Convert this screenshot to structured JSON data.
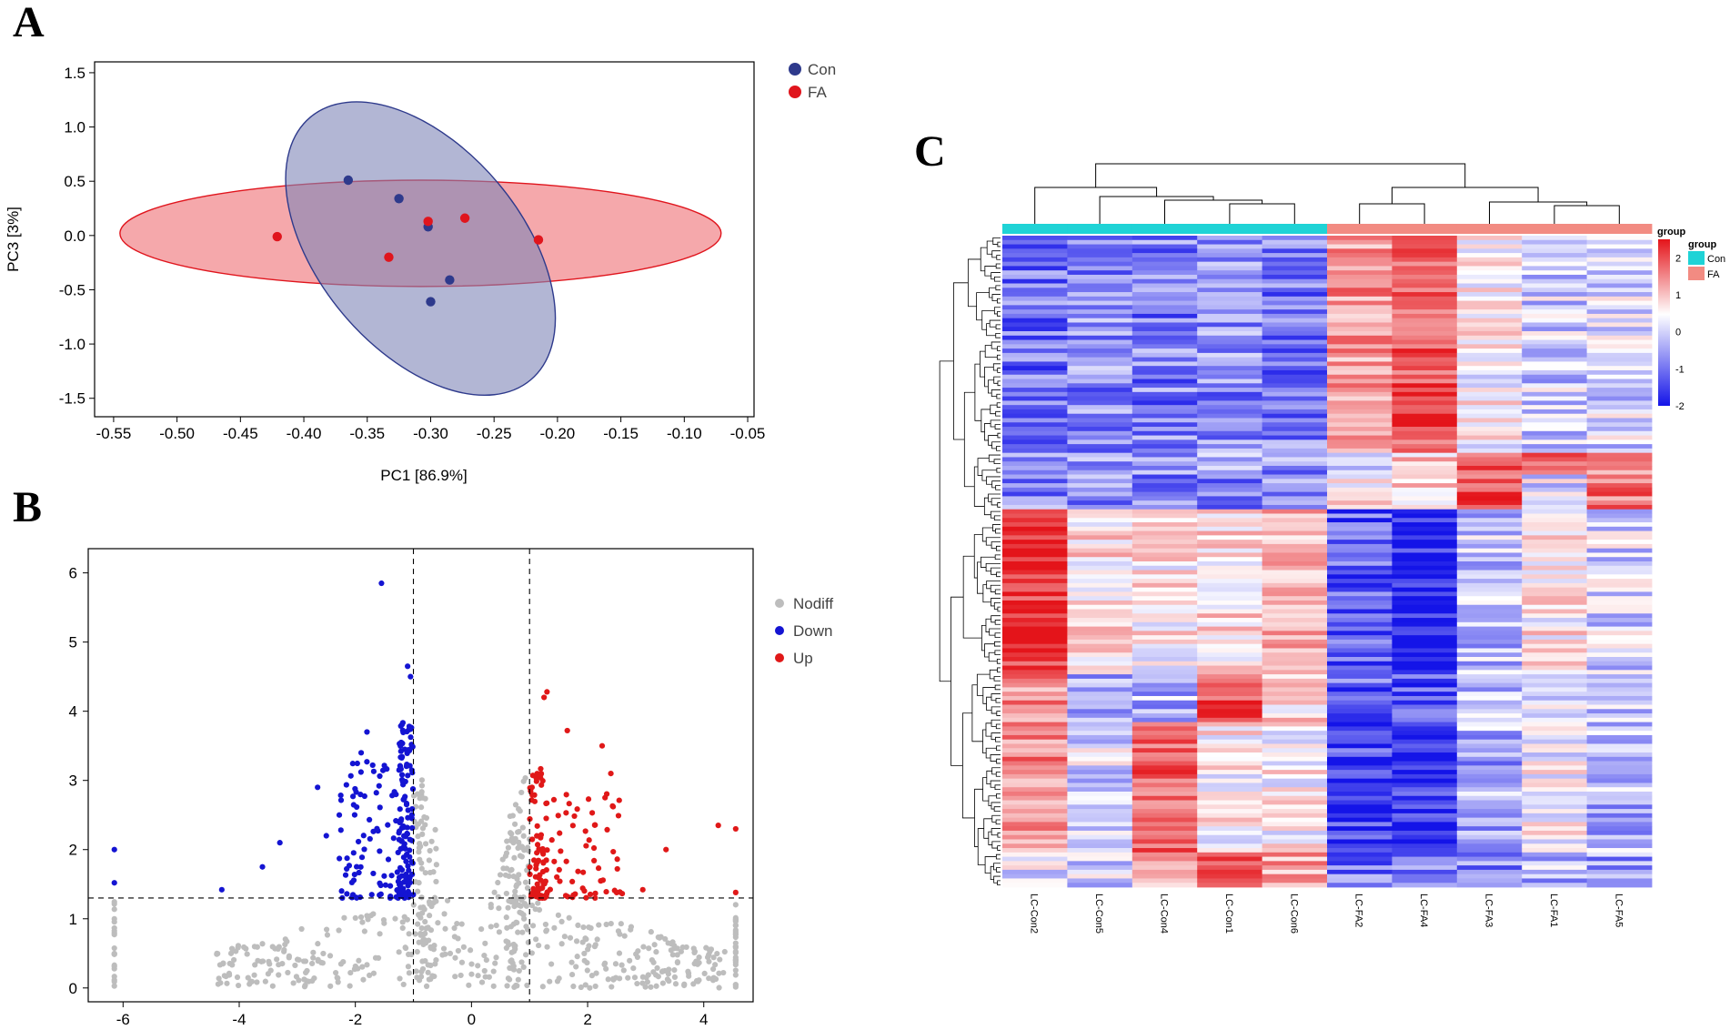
{
  "panels": {
    "a": "A",
    "b": "B",
    "c": "C"
  },
  "chart_data": [
    {
      "id": "A",
      "type": "scatter",
      "title": "",
      "xlabel": "PC1 [86.9%]",
      "ylabel": "PC3 [3%]",
      "xlim": [
        -0.565,
        -0.045
      ],
      "ylim": [
        -1.67,
        1.6
      ],
      "xticks": [
        -0.55,
        -0.5,
        -0.45,
        -0.4,
        -0.35,
        -0.3,
        -0.25,
        -0.2,
        -0.15,
        -0.1,
        -0.05
      ],
      "xtick_labels": [
        "-0.55",
        "-0.50",
        "-0.45",
        "-0.40",
        "-0.35",
        "-0.30",
        "-0.25",
        "-0.20",
        "-0.15",
        "-0.10",
        "-0.05"
      ],
      "yticks": [
        -1.5,
        -1.0,
        -0.5,
        0.0,
        0.5,
        1.0,
        1.5
      ],
      "ytick_labels": [
        "-1.5",
        "-1.0",
        "-0.5",
        "0.0",
        "0.5",
        "1.0",
        "1.5"
      ],
      "legend_position": "outside-top-right",
      "series": [
        {
          "name": "Con",
          "color": "#2e3a8c",
          "fill": "#7f86b8",
          "points": [
            [
              -0.365,
              0.51
            ],
            [
              -0.325,
              0.34
            ],
            [
              -0.302,
              0.08
            ],
            [
              -0.285,
              -0.41
            ],
            [
              -0.3,
              -0.61
            ]
          ],
          "ellipse": {
            "cx": -0.308,
            "cy": -0.12,
            "rx": 0.08,
            "ry": 1.58,
            "angle_deg": 40
          }
        },
        {
          "name": "FA",
          "color": "#e0151d",
          "fill": "#ef6e73",
          "points": [
            [
              -0.421,
              -0.01
            ],
            [
              -0.302,
              0.13
            ],
            [
              -0.273,
              0.16
            ],
            [
              -0.333,
              -0.2
            ],
            [
              -0.215,
              -0.04
            ]
          ],
          "ellipse": {
            "cx": -0.308,
            "cy": 0.02,
            "rx": 0.237,
            "ry": 0.49,
            "angle_deg": 0
          }
        }
      ]
    },
    {
      "id": "B",
      "type": "scatter",
      "title": "",
      "xlabel": "",
      "ylabel": "",
      "xlim": [
        -6.6,
        4.85
      ],
      "ylim": [
        -0.2,
        6.35
      ],
      "xticks": [
        -6,
        -4,
        -2,
        0,
        2,
        4
      ],
      "xtick_labels": [
        "-6",
        "-4",
        "-2",
        "0",
        "2",
        "4"
      ],
      "yticks": [
        0,
        1,
        2,
        3,
        4,
        5,
        6
      ],
      "ytick_labels": [
        "0",
        "1",
        "2",
        "3",
        "4",
        "5",
        "6"
      ],
      "thresholds": {
        "x": [
          -1,
          1
        ],
        "y": 1.3
      },
      "legend_position": "outside-top-right",
      "series": [
        {
          "name": "Nodiff",
          "color": "#bdbdbd",
          "count": 620,
          "region": "|x|<1 or y<1.3"
        },
        {
          "name": "Down",
          "color": "#1414d2",
          "count": 210,
          "region": "x<=-1 and y>=1.3",
          "points": [
            [
              -1.55,
              5.85
            ],
            [
              -1.1,
              4.65
            ],
            [
              -1.05,
              4.5
            ],
            [
              -6.15,
              2.0
            ],
            [
              -6.15,
              1.52
            ],
            [
              -4.3,
              1.42
            ],
            [
              -2.65,
              2.9
            ],
            [
              -1.9,
              3.4
            ],
            [
              -1.8,
              3.7
            ],
            [
              -3.3,
              2.1
            ],
            [
              -3.6,
              1.75
            ],
            [
              -2.5,
              2.2
            ]
          ]
        },
        {
          "name": "Up",
          "color": "#e01818",
          "count": 140,
          "region": "x>=1 and y>=1.3",
          "points": [
            [
              1.3,
              4.28
            ],
            [
              1.25,
              4.2
            ],
            [
              1.65,
              3.72
            ],
            [
              2.25,
              3.5
            ],
            [
              2.4,
              3.1
            ],
            [
              4.25,
              2.35
            ],
            [
              4.55,
              2.3
            ],
            [
              4.55,
              1.38
            ],
            [
              3.35,
              2.0
            ],
            [
              2.95,
              1.42
            ],
            [
              2.3,
              2.75
            ]
          ]
        }
      ]
    },
    {
      "id": "C",
      "type": "heatmap",
      "title": "",
      "columns": [
        "LC-Con2",
        "LC-Con5",
        "LC-Con4",
        "LC-Con1",
        "LC-Con6",
        "LC-FA2",
        "LC-FA4",
        "LC-FA3",
        "LC-FA1",
        "LC-FA5"
      ],
      "column_groups": [
        "Con",
        "Con",
        "Con",
        "Con",
        "Con",
        "FA",
        "FA",
        "FA",
        "FA",
        "FA"
      ],
      "group_colors": {
        "Con": "#1fd3d6",
        "FA": "#f28b82"
      },
      "legend": {
        "scale_title": "group",
        "group_title": "group",
        "ticks": [
          2,
          1,
          0,
          -1,
          -2
        ],
        "tick_labels": [
          "2",
          "1",
          "0",
          "-1",
          "-2"
        ],
        "range": [
          -2,
          2.5
        ],
        "colors": {
          "high": "#e4141a",
          "mid": "#ffffff",
          "low": "#1414e8"
        },
        "groups": [
          "Con",
          "FA"
        ]
      },
      "row_blocks": [
        {
          "fraction": 0.33,
          "means": [
            -1.2,
            -1.0,
            -1.1,
            -1.0,
            -1.1,
            1.0,
            1.6,
            0.1,
            -0.4,
            -0.3
          ]
        },
        {
          "fraction": 0.03,
          "means": [
            -0.8,
            -0.9,
            -0.7,
            -0.8,
            -0.9,
            -0.2,
            0.5,
            1.7,
            1.2,
            0.9
          ]
        },
        {
          "fraction": 0.05,
          "means": [
            -1.0,
            -0.9,
            -1.0,
            -1.1,
            -1.0,
            0.3,
            0.4,
            1.6,
            -0.2,
            1.3
          ]
        },
        {
          "fraction": 0.25,
          "means": [
            1.9,
            0.3,
            0.2,
            0.3,
            0.6,
            -1.4,
            -1.9,
            -0.5,
            0.2,
            -0.3
          ]
        },
        {
          "fraction": 0.07,
          "means": [
            1.0,
            -0.6,
            -0.6,
            1.7,
            0.3,
            -1.3,
            -1.5,
            -0.6,
            -0.3,
            -0.4
          ]
        },
        {
          "fraction": 0.2,
          "means": [
            1.1,
            -0.3,
            1.5,
            0.1,
            0.1,
            -1.6,
            -1.8,
            -0.7,
            0.0,
            -0.6
          ]
        },
        {
          "fraction": 0.07,
          "means": [
            -0.2,
            -0.3,
            0.9,
            1.6,
            0.9,
            -1.2,
            -1.2,
            -1.0,
            -0.6,
            -0.8
          ]
        }
      ]
    }
  ]
}
